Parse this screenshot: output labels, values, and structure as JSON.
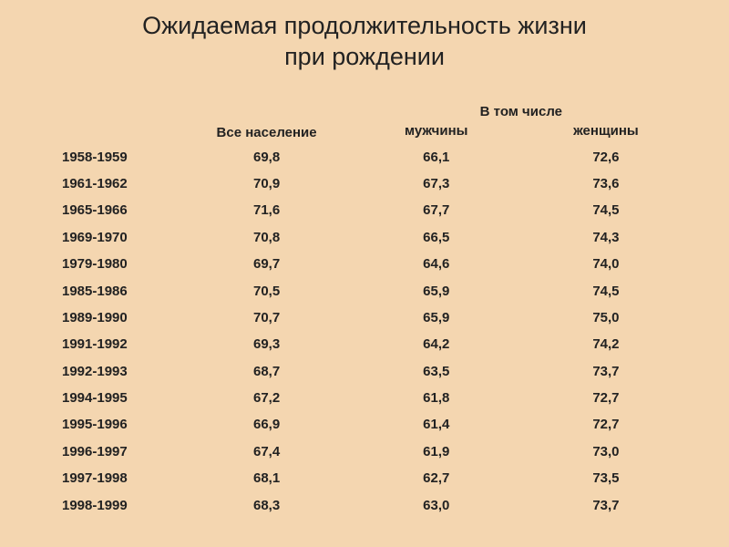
{
  "title_line1": "Ожидаемая продолжительность жизни",
  "title_line2": "при рождении",
  "headers": {
    "total": "Все население",
    "group": "В том числе",
    "men": "мужчины",
    "women": "женщины"
  },
  "table": {
    "background_color": "#f4d6b0",
    "text_color": "#222222",
    "title_fontsize": 27,
    "cell_fontsize": 15,
    "font_weight": "bold",
    "columns": [
      "year",
      "total",
      "men",
      "women"
    ],
    "col_widths_pct": [
      22,
      26,
      26,
      26
    ],
    "rows": [
      {
        "year": "1958-1959",
        "total": "69,8",
        "men": "66,1",
        "women": "72,6"
      },
      {
        "year": "1961-1962",
        "total": "70,9",
        "men": "67,3",
        "women": "73,6"
      },
      {
        "year": "1965-1966",
        "total": "71,6",
        "men": "67,7",
        "women": "74,5"
      },
      {
        "year": "1969-1970",
        "total": "70,8",
        "men": "66,5",
        "women": "74,3"
      },
      {
        "year": "1979-1980",
        "total": "69,7",
        "men": "64,6",
        "women": "74,0"
      },
      {
        "year": "1985-1986",
        "total": "70,5",
        "men": "65,9",
        "women": "74,5"
      },
      {
        "year": "1989-1990",
        "total": "70,7",
        "men": "65,9",
        "women": "75,0"
      },
      {
        "year": "1991-1992",
        "total": "69,3",
        "men": "64,2",
        "women": "74,2"
      },
      {
        "year": "1992-1993",
        "total": "68,7",
        "men": "63,5",
        "women": "73,7"
      },
      {
        "year": "1994-1995",
        "total": "67,2",
        "men": "61,8",
        "women": "72,7"
      },
      {
        "year": "1995-1996",
        "total": "66,9",
        "men": "61,4",
        "women": "72,7"
      },
      {
        "year": "1996-1997",
        "total": "67,4",
        "men": "61,9",
        "women": "73,0"
      },
      {
        "year": "1997-1998",
        "total": "68,1",
        "men": "62,7",
        "women": "73,5"
      },
      {
        "year": "1998-1999",
        "total": "68,3",
        "men": "63,0",
        "women": "73,7"
      }
    ]
  }
}
